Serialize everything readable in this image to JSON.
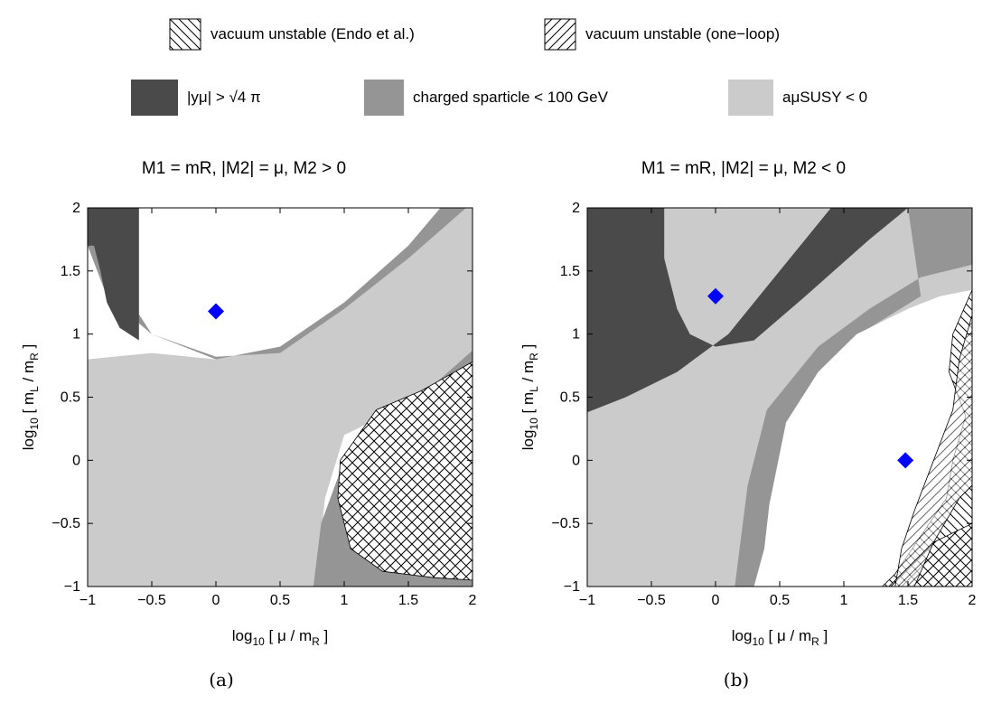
{
  "legend": {
    "hatch_endo": "vacuum unstable (Endo et al.)",
    "hatch_oneloop": "vacuum unstable (one−loop)",
    "dark": "|yμ| > √4 π",
    "medium": "charged sparticle < 100 GeV",
    "light": "aμSUSY < 0"
  },
  "colors": {
    "dark": "#4a4a4a",
    "medium": "#959595",
    "light": "#cbcbcb",
    "marker": "#0000ff"
  },
  "chart_data": [
    {
      "type": "area",
      "title": "M1 = mR, |M2| = μ, M2 > 0",
      "xlabel": "log10 [ μ / mR ]",
      "ylabel": "log10 [ mL / mR ]",
      "xlim": [
        -1,
        2
      ],
      "ylim": [
        -1,
        2
      ],
      "xticks": [
        "−1",
        "−0.5",
        "0",
        "0.5",
        "1",
        "1.5",
        "2"
      ],
      "yticks": [
        "−1",
        "−0.5",
        "0",
        "0.5",
        "1",
        "1.5",
        "2"
      ],
      "caption": "(a)",
      "marker": {
        "x": 0.0,
        "y": 1.18
      },
      "regions": {
        "light": [
          [
            -1,
            0.8
          ],
          [
            -0.5,
            0.85
          ],
          [
            0,
            0.8
          ],
          [
            0.5,
            0.9
          ],
          [
            1,
            1.25
          ],
          [
            1.5,
            1.7
          ],
          [
            1.75,
            2
          ],
          [
            2,
            2
          ],
          [
            2,
            0.7
          ],
          [
            1.5,
            0.45
          ],
          [
            1,
            0.2
          ],
          [
            0.85,
            -0.3
          ],
          [
            0.78,
            -1
          ],
          [
            -1,
            -1
          ]
        ],
        "medium_upper": [
          [
            -1,
            1.7
          ],
          [
            -0.85,
            1.3
          ],
          [
            -0.5,
            1.0
          ],
          [
            0,
            0.8
          ],
          [
            0.5,
            0.9
          ],
          [
            1,
            1.25
          ],
          [
            1.5,
            1.7
          ],
          [
            1.75,
            2
          ],
          [
            1.95,
            2
          ],
          [
            1.5,
            1.6
          ],
          [
            1,
            1.2
          ],
          [
            0.5,
            0.85
          ],
          [
            0,
            0.82
          ],
          [
            -0.5,
            1.0
          ],
          [
            -0.85,
            1.55
          ],
          [
            -0.85,
            2
          ],
          [
            -1,
            2
          ]
        ],
        "medium_lower": [
          [
            0.76,
            -1
          ],
          [
            0.82,
            -0.5
          ],
          [
            1.0,
            0.0
          ],
          [
            1.3,
            0.35
          ],
          [
            1.7,
            0.6
          ],
          [
            2,
            0.87
          ],
          [
            2,
            -1
          ]
        ],
        "dark": [
          [
            -1,
            2
          ],
          [
            -0.6,
            2
          ],
          [
            -0.6,
            0.95
          ],
          [
            -0.75,
            1.05
          ],
          [
            -0.85,
            1.25
          ],
          [
            -0.9,
            1.5
          ],
          [
            -0.95,
            1.7
          ],
          [
            -1,
            1.7
          ]
        ],
        "hatch_cross": [
          [
            2,
            0.78
          ],
          [
            1.6,
            0.55
          ],
          [
            1.25,
            0.4
          ],
          [
            0.97,
            0.0
          ],
          [
            0.95,
            -0.3
          ],
          [
            1.05,
            -0.7
          ],
          [
            1.3,
            -0.88
          ],
          [
            1.7,
            -0.93
          ],
          [
            2,
            -0.95
          ]
        ]
      }
    },
    {
      "type": "area",
      "title": "M1 = mR, |M2| = μ, M2 < 0",
      "xlabel": "log10 [ μ / mR ]",
      "ylabel": "log10 [ mL / mR ]",
      "xlim": [
        -1,
        2
      ],
      "ylim": [
        -1,
        2
      ],
      "xticks": [
        "−1",
        "−0.5",
        "0",
        "0.5",
        "1",
        "1.5",
        "2"
      ],
      "yticks": [
        "−1",
        "−0.5",
        "0",
        "0.5",
        "1",
        "1.5",
        "2"
      ],
      "caption": "(b)",
      "markers": [
        {
          "x": 0.0,
          "y": 1.3
        },
        {
          "x": 1.48,
          "y": 0.0
        }
      ],
      "regions": {
        "light": [
          [
            -1,
            -1
          ],
          [
            -1,
            2
          ],
          [
            2,
            2
          ],
          [
            2,
            -1
          ]
        ],
        "dark": [
          [
            -1,
            2
          ],
          [
            -0.4,
            2
          ],
          [
            -0.4,
            1.6
          ],
          [
            -0.3,
            1.2
          ],
          [
            -0.2,
            1.0
          ],
          [
            0,
            0.9
          ],
          [
            0.3,
            0.95
          ],
          [
            0.7,
            1.3
          ],
          [
            1.2,
            1.75
          ],
          [
            1.5,
            2
          ],
          [
            0.9,
            2
          ],
          [
            0.5,
            1.5
          ],
          [
            0.1,
            1.0
          ],
          [
            -0.3,
            0.7
          ],
          [
            -0.7,
            0.5
          ],
          [
            -1,
            0.38
          ]
        ],
        "medium": [
          [
            1.5,
            2
          ],
          [
            2,
            2
          ],
          [
            2,
            1.55
          ],
          [
            1.6,
            1.45
          ],
          [
            1.2,
            1.2
          ],
          [
            0.8,
            0.9
          ],
          [
            0.4,
            0.4
          ],
          [
            0.25,
            -0.2
          ],
          [
            0.2,
            -0.6
          ],
          [
            0.15,
            -1
          ],
          [
            0.3,
            -1
          ],
          [
            0.38,
            -0.7
          ],
          [
            0.42,
            -0.35
          ],
          [
            0.55,
            0.3
          ],
          [
            0.9,
            0.8
          ],
          [
            1.2,
            1.05
          ],
          [
            1.6,
            1.3
          ]
        ],
        "white": [
          [
            0.3,
            -1
          ],
          [
            0.38,
            -0.7
          ],
          [
            0.42,
            -0.35
          ],
          [
            0.55,
            0.3
          ],
          [
            0.8,
            0.7
          ],
          [
            1.1,
            1.0
          ],
          [
            1.5,
            1.2
          ],
          [
            1.75,
            1.3
          ],
          [
            2,
            1.35
          ],
          [
            2,
            -1
          ]
        ],
        "hatch_endo": [
          [
            2,
            1.35
          ],
          [
            1.85,
            1.0
          ],
          [
            1.82,
            0.7
          ],
          [
            1.95,
            0.35
          ],
          [
            1.85,
            0.0
          ],
          [
            1.8,
            -0.3
          ],
          [
            1.6,
            -0.6
          ],
          [
            1.4,
            -0.9
          ],
          [
            1.3,
            -1
          ],
          [
            2,
            -1
          ]
        ],
        "hatch_cross": [
          [
            2,
            -0.5
          ],
          [
            1.7,
            -0.65
          ],
          [
            1.5,
            -0.85
          ],
          [
            1.35,
            -1
          ],
          [
            2,
            -1
          ]
        ]
      }
    }
  ]
}
